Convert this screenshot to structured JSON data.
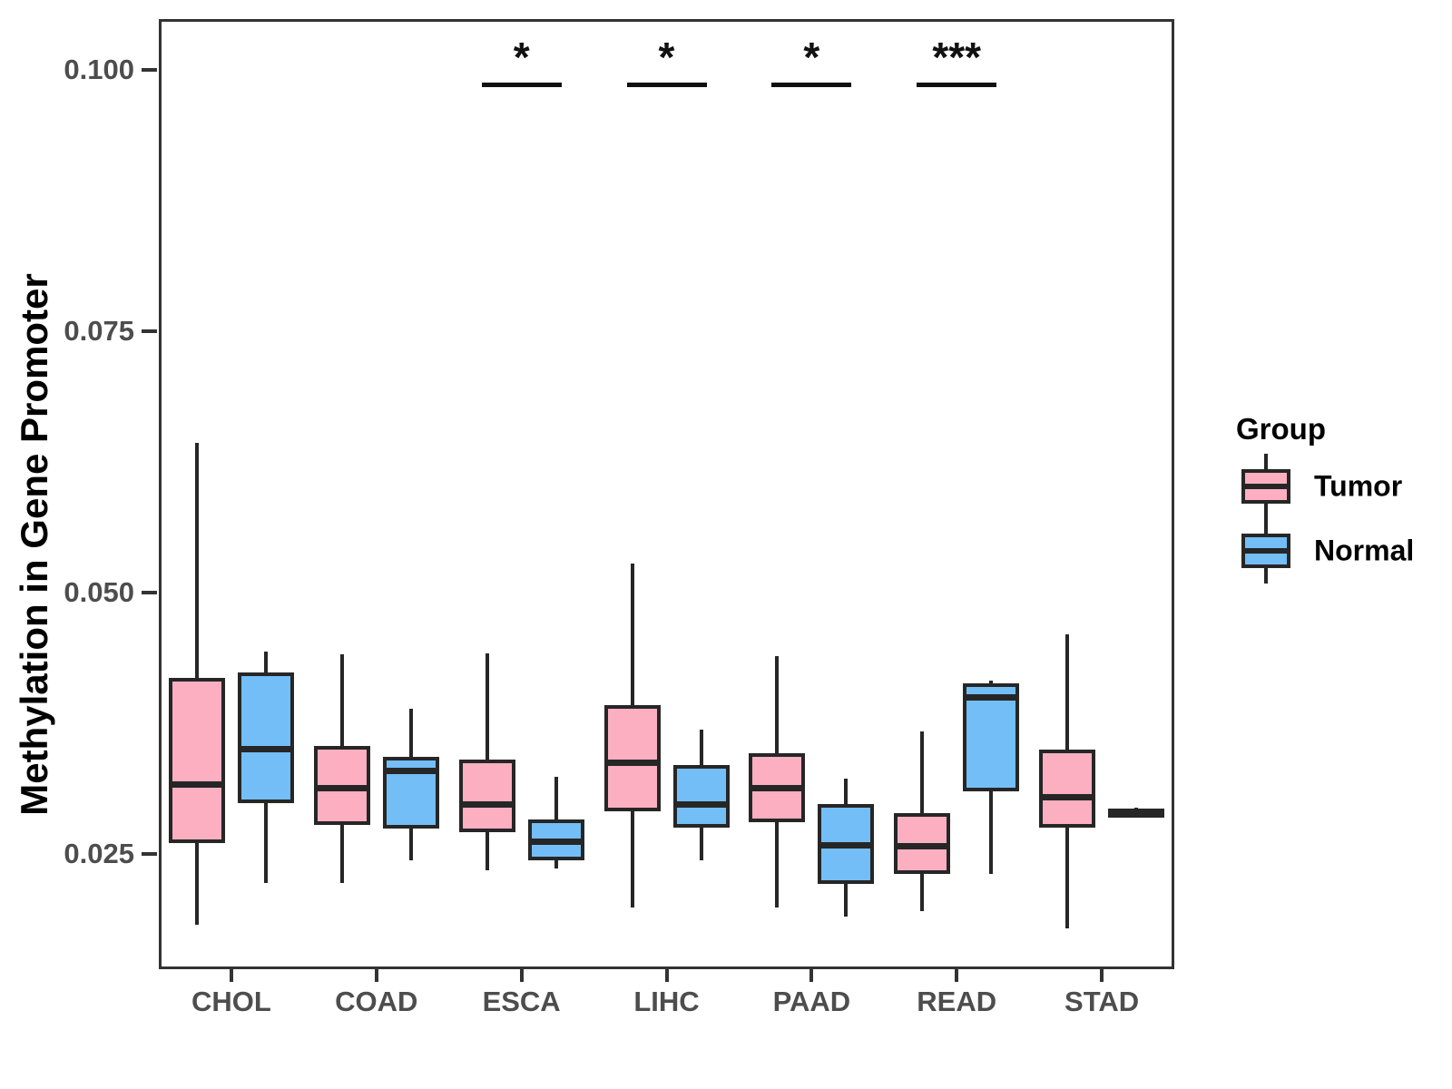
{
  "legend": {
    "title": "Group",
    "items": [
      {
        "label": "Tumor",
        "color": "#FBAFC1"
      },
      {
        "label": "Normal",
        "color": "#73BEF7"
      }
    ]
  },
  "colors": {
    "tumor_fill": "#FBAFC1",
    "normal_fill": "#73BEF7",
    "line": "#262626",
    "axis_text": "#4d4d4d",
    "panel_border": "#333333"
  },
  "chart_data": {
    "type": "boxplot",
    "title": "",
    "xlabel": "",
    "ylabel": "Methylation in Gene Promoter",
    "categories": [
      "CHOL",
      "COAD",
      "ESCA",
      "LIHC",
      "PAAD",
      "READ",
      "STAD"
    ],
    "y_ticks": [
      0.1,
      0.075,
      0.05,
      0.025
    ],
    "y_tick_labels": [
      "0.100",
      "0.075",
      "0.050",
      "0.025"
    ],
    "ylim": [
      0.014,
      0.105
    ],
    "grid": false,
    "legend_position": "right",
    "series": [
      {
        "name": "Tumor",
        "color": "#FBAFC1",
        "boxes": [
          {
            "category": "CHOL",
            "min": 0.0182,
            "q1": 0.026,
            "median": 0.0316,
            "q3": 0.0418,
            "max": 0.0643
          },
          {
            "category": "COAD",
            "min": 0.0222,
            "q1": 0.0278,
            "median": 0.0313,
            "q3": 0.0353,
            "max": 0.0441
          },
          {
            "category": "ESCA",
            "min": 0.0234,
            "q1": 0.0271,
            "median": 0.0297,
            "q3": 0.034,
            "max": 0.0442
          },
          {
            "category": "LIHC",
            "min": 0.0199,
            "q1": 0.0291,
            "median": 0.0337,
            "q3": 0.0392,
            "max": 0.0528
          },
          {
            "category": "PAAD",
            "min": 0.0199,
            "q1": 0.028,
            "median": 0.0313,
            "q3": 0.0346,
            "max": 0.0439
          },
          {
            "category": "READ",
            "min": 0.0195,
            "q1": 0.0231,
            "median": 0.0257,
            "q3": 0.0289,
            "max": 0.0367
          },
          {
            "category": "STAD",
            "min": 0.0179,
            "q1": 0.0275,
            "median": 0.0304,
            "q3": 0.035,
            "max": 0.046
          }
        ]
      },
      {
        "name": "Normal",
        "color": "#73BEF7",
        "boxes": [
          {
            "category": "CHOL",
            "min": 0.0222,
            "q1": 0.0299,
            "median": 0.035,
            "q3": 0.0424,
            "max": 0.0444
          },
          {
            "category": "COAD",
            "min": 0.0244,
            "q1": 0.0274,
            "median": 0.0329,
            "q3": 0.0343,
            "max": 0.0389
          },
          {
            "category": "ESCA",
            "min": 0.0236,
            "q1": 0.0244,
            "median": 0.0262,
            "q3": 0.0283,
            "max": 0.0324
          },
          {
            "category": "LIHC",
            "min": 0.0244,
            "q1": 0.0275,
            "median": 0.0297,
            "q3": 0.0335,
            "max": 0.0369
          },
          {
            "category": "PAAD",
            "min": 0.019,
            "q1": 0.0221,
            "median": 0.0258,
            "q3": 0.0298,
            "max": 0.0322
          },
          {
            "category": "READ",
            "min": 0.0231,
            "q1": 0.031,
            "median": 0.04,
            "q3": 0.0413,
            "max": 0.0416
          },
          {
            "category": "STAD",
            "min": 0.0285,
            "q1": 0.0287,
            "median": 0.029,
            "q3": 0.0292,
            "max": 0.0294
          }
        ]
      }
    ],
    "significance": [
      {
        "category": "ESCA",
        "label": "*"
      },
      {
        "category": "LIHC",
        "label": "*"
      },
      {
        "category": "PAAD",
        "label": "*"
      },
      {
        "category": "READ",
        "label": "***"
      }
    ]
  }
}
